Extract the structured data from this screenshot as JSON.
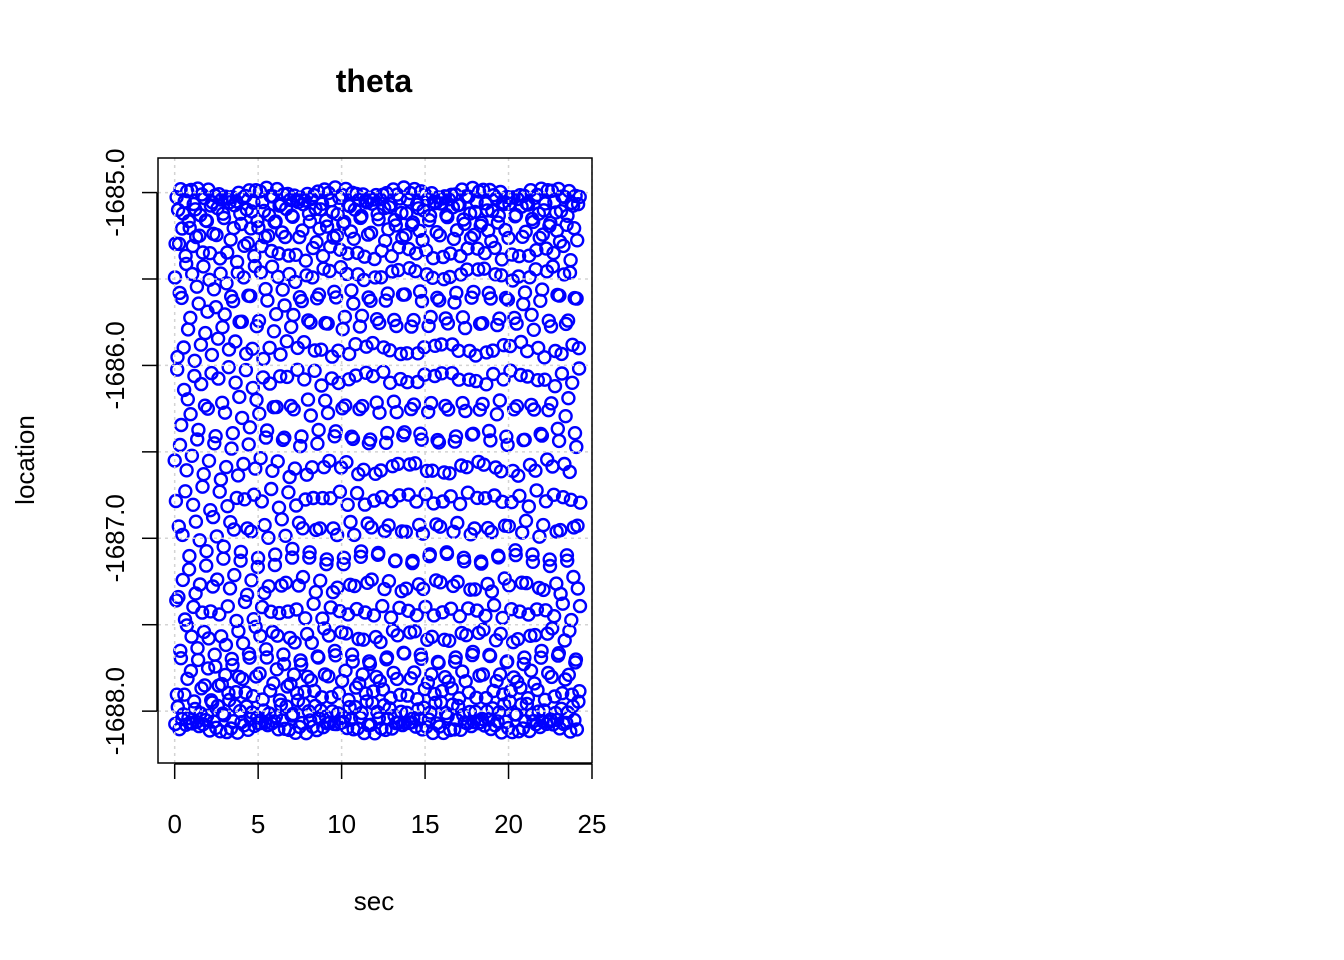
{
  "chart_data": {
    "type": "scatter",
    "title": "theta",
    "xlabel": "sec",
    "ylabel": "location",
    "xlim": [
      -1,
      25
    ],
    "ylim": [
      -1688.3,
      -1684.8
    ],
    "x_ticks": [
      0,
      5,
      10,
      15,
      20,
      25
    ],
    "x_tick_labels": [
      "0",
      "5",
      "10",
      "15",
      "20",
      "25"
    ],
    "y_ticks": [
      -1685.0,
      -1685.5,
      -1686.0,
      -1686.5,
      -1687.0,
      -1687.5,
      -1688.0
    ],
    "y_tick_labels": [
      "-1685.0",
      "",
      "-1686.0",
      "",
      "-1687.0",
      "",
      "-1688.0"
    ],
    "grid": true,
    "point_color": "#0000ff",
    "series": [
      {
        "x_range": [
          0,
          24.3
        ],
        "y_range": [
          -1688.1,
          -1685.0
        ],
        "note_points": "dense oscillating samples filling the band, approx 1 sample per 0.02 sec"
      }
    ]
  }
}
